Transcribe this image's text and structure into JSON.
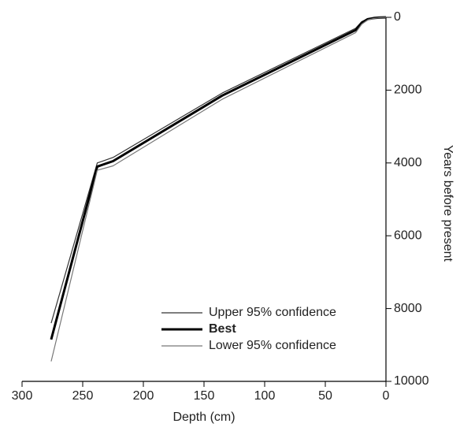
{
  "chart_data": {
    "type": "line",
    "x_label": "Depth (cm)",
    "y_label": "Years before present",
    "x": [
      0,
      5,
      10,
      15,
      20,
      25,
      135,
      225,
      238,
      276
    ],
    "series": [
      {
        "name": "Upper 95% confidence",
        "color": "#333333",
        "line_width": 1.2,
        "values": [
          0,
          5,
          15,
          40,
          120,
          300,
          2080,
          3850,
          4000,
          8400
        ]
      },
      {
        "name": "Best",
        "color": "#000000",
        "line_width": 3,
        "values": [
          0,
          5,
          20,
          50,
          150,
          350,
          2150,
          3950,
          4100,
          8850
        ]
      },
      {
        "name": "Lower 95% confidence",
        "color": "#777777",
        "line_width": 1.2,
        "values": [
          0,
          8,
          30,
          70,
          190,
          420,
          2250,
          4080,
          4200,
          9450
        ]
      }
    ],
    "xlim": [
      300,
      0
    ],
    "xticks": [
      300,
      250,
      200,
      150,
      100,
      50,
      0
    ],
    "ylim": [
      0,
      10000
    ],
    "yticks": [
      0,
      2000,
      4000,
      6000,
      8000,
      10000
    ],
    "legend": "lower right"
  }
}
